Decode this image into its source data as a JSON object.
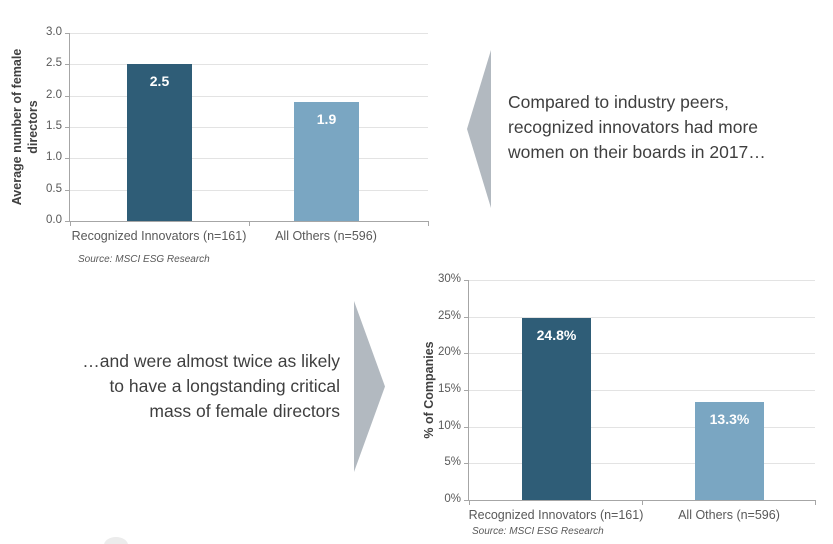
{
  "colors": {
    "dark_bar": "#2F5D77",
    "light_bar": "#7AA6C2",
    "arrow": "#B2B9C0",
    "annotation_text": "#3F3F3F",
    "axis": "#A6A6A6",
    "gridline": "#E3E3E3",
    "tick_label": "#595959"
  },
  "annotations": {
    "top": {
      "lines": [
        "Compared to industry peers,",
        "recognized innovators had more",
        "women on their boards in 2017…"
      ]
    },
    "bottom": {
      "lines": [
        "…and were almost twice as likely",
        "to have a longstanding critical",
        "mass of female directors"
      ]
    }
  },
  "chart_data": [
    {
      "type": "bar",
      "categories": [
        "Recognized Innovators (n=161)",
        "All Others (n=596)"
      ],
      "values": [
        2.5,
        1.9
      ],
      "value_labels": [
        "2.5",
        "1.9"
      ],
      "bar_colors": [
        "#2F5D77",
        "#7AA6C2"
      ],
      "ylabel": "Average number of female directors",
      "xlabel": "",
      "title": "",
      "ylim": [
        0,
        3
      ],
      "yticks": [
        "3.0",
        "2.5",
        "2.0",
        "1.5",
        "1.0",
        "0.5",
        "0.0"
      ],
      "grid": true,
      "legend": "none",
      "source": "Source: MSCI ESG Research"
    },
    {
      "type": "bar",
      "categories": [
        "Recognized Innovators (n=161)",
        "All Others (n=596)"
      ],
      "values": [
        24.8,
        13.3
      ],
      "value_labels": [
        "24.8%",
        "13.3%"
      ],
      "bar_colors": [
        "#2F5D77",
        "#7AA6C2"
      ],
      "ylabel": "% of Companies",
      "xlabel": "",
      "title": "",
      "ylim": [
        0,
        30
      ],
      "yticks": [
        "30%",
        "25%",
        "20%",
        "15%",
        "10%",
        "5%",
        "0%"
      ],
      "grid": true,
      "legend": "none",
      "source": "Source: MSCI ESG Research"
    }
  ]
}
